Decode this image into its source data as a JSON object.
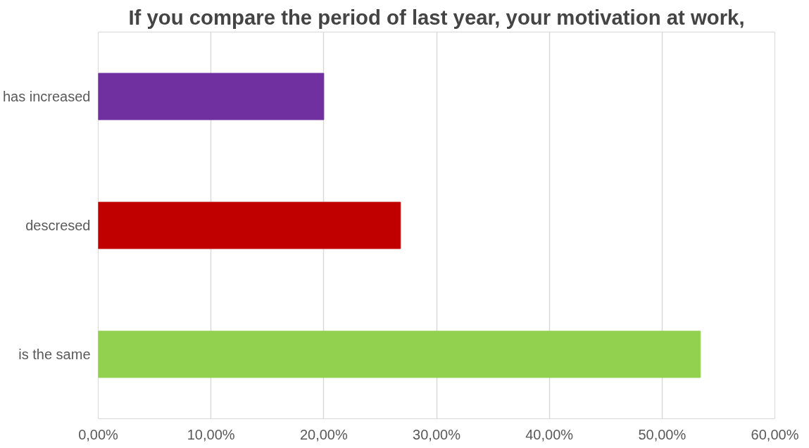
{
  "chart_data": {
    "type": "bar",
    "orientation": "horizontal",
    "title": "If you compare the period of last year, your motivation at work,",
    "categories": [
      "has increased",
      "descresed",
      "is the same"
    ],
    "values": [
      20.0,
      26.8,
      53.4
    ],
    "colors": [
      "#7030a0",
      "#c00000",
      "#92d050"
    ],
    "xlim": [
      0,
      60
    ],
    "xticks": [
      {
        "value": 0,
        "label": "0,00%"
      },
      {
        "value": 10,
        "label": "10,00%"
      },
      {
        "value": 20,
        "label": "20,00%"
      },
      {
        "value": 30,
        "label": "30,00%"
      },
      {
        "value": 40,
        "label": "40,00%"
      },
      {
        "value": 50,
        "label": "50,00%"
      },
      {
        "value": 60,
        "label": "60,00%"
      }
    ],
    "grid": "x"
  }
}
